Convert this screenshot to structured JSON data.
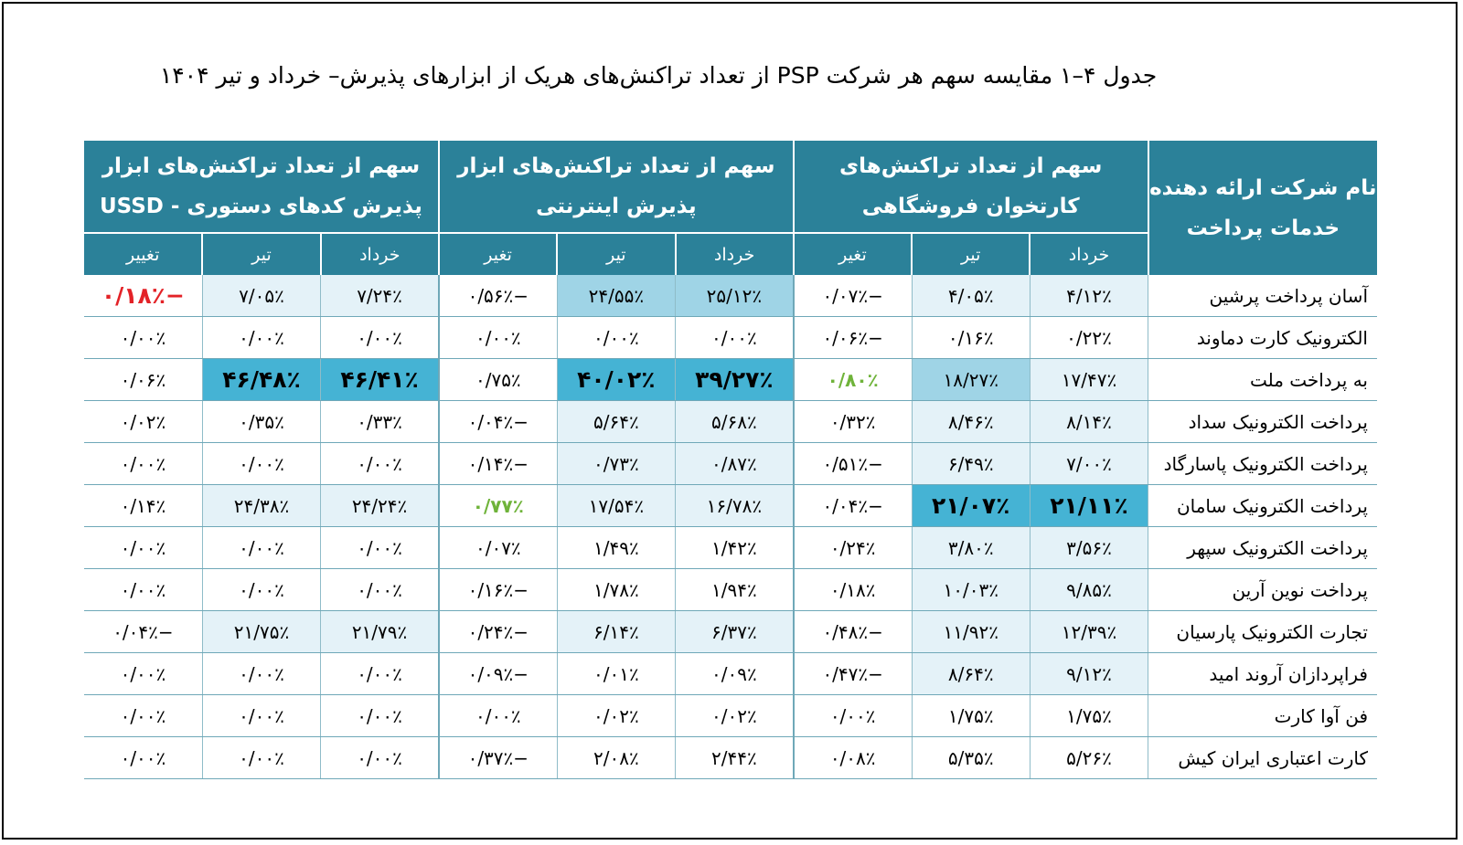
{
  "title": "جدول ۴–۱ مقایسه سهم هر شرکت PSP از تعداد تراکنش‌های هریک از ابزارهای پذیرش– خرداد و تیر ۱۴۰۴",
  "header": {
    "company": "نام شرکت ارائه دهنده خدمات پرداخت",
    "groups": [
      "سهم از تعداد تراکنش‌های کارتخوان فروشگاهی",
      "سهم از تعداد تراکنش‌های ابزار پذیرش اینترنتی",
      "سهم از تعداد تراکنش‌های ابزار پذیرش کدهای دستوری - USSD"
    ],
    "sub": [
      "خرداد",
      "تیر",
      "تغیر"
    ],
    "sub_last": "تغییر"
  },
  "rows": [
    {
      "name": "آسان پرداخت پرشین",
      "v": [
        "۴/۱۲٪",
        "۴/۰۵٪",
        "−۰/۰۷٪",
        "۲۵/۱۲٪",
        "۲۴/۵۵٪",
        "−۰/۵۶٪",
        "۷/۲۴٪",
        "۷/۰۵٪",
        "−۰/۱۸٪"
      ]
    },
    {
      "name": "الکترونیک کارت دماوند",
      "v": [
        "۰/۲۲٪",
        "۰/۱۶٪",
        "−۰/۰۶٪",
        "۰/۰۰٪",
        "۰/۰۰٪",
        "۰/۰۰٪",
        "۰/۰۰٪",
        "۰/۰۰٪",
        "۰/۰۰٪"
      ]
    },
    {
      "name": "به پرداخت ملت",
      "v": [
        "۱۷/۴۷٪",
        "۱۸/۲۷٪",
        "۰/۸۰٪",
        "۳۹/۲۷٪",
        "۴۰/۰۲٪",
        "۰/۷۵٪",
        "۴۶/۴۱٪",
        "۴۶/۴۸٪",
        "۰/۰۶٪"
      ]
    },
    {
      "name": "پرداخت الکترونیک سداد",
      "v": [
        "۸/۱۴٪",
        "۸/۴۶٪",
        "۰/۳۲٪",
        "۵/۶۸٪",
        "۵/۶۴٪",
        "−۰/۰۴٪",
        "۰/۳۳٪",
        "۰/۳۵٪",
        "۰/۰۲٪"
      ]
    },
    {
      "name": "پرداخت الکترونیک پاسارگاد",
      "v": [
        "۷/۰۰٪",
        "۶/۴۹٪",
        "−۰/۵۱٪",
        "۰/۸۷٪",
        "۰/۷۳٪",
        "−۰/۱۴٪",
        "۰/۰۰٪",
        "۰/۰۰٪",
        "۰/۰۰٪"
      ]
    },
    {
      "name": "پرداخت الکترونیک سامان",
      "v": [
        "۲۱/۱۱٪",
        "۲۱/۰۷٪",
        "−۰/۰۴٪",
        "۱۶/۷۸٪",
        "۱۷/۵۴٪",
        "۰/۷۷٪",
        "۲۴/۲۴٪",
        "۲۴/۳۸٪",
        "۰/۱۴٪"
      ]
    },
    {
      "name": "پرداخت الکترونیک سپهر",
      "v": [
        "۳/۵۶٪",
        "۳/۸۰٪",
        "۰/۲۴٪",
        "۱/۴۲٪",
        "۱/۴۹٪",
        "۰/۰۷٪",
        "۰/۰۰٪",
        "۰/۰۰٪",
        "۰/۰۰٪"
      ]
    },
    {
      "name": "پرداخت نوین آرین",
      "v": [
        "۹/۸۵٪",
        "۱۰/۰۳٪",
        "۰/۱۸٪",
        "۱/۹۴٪",
        "۱/۷۸٪",
        "−۰/۱۶٪",
        "۰/۰۰٪",
        "۰/۰۰٪",
        "۰/۰۰٪"
      ]
    },
    {
      "name": "تجارت الکترونیک پارسیان",
      "v": [
        "۱۲/۳۹٪",
        "۱۱/۹۲٪",
        "−۰/۴۸٪",
        "۶/۳۷٪",
        "۶/۱۴٪",
        "−۰/۲۴٪",
        "۲۱/۷۹٪",
        "۲۱/۷۵٪",
        "−۰/۰۴٪"
      ]
    },
    {
      "name": "فراپردازان آروند امید",
      "v": [
        "۹/۱۲٪",
        "۸/۶۴٪",
        "−۰/۴۷٪",
        "۰/۰۹٪",
        "۰/۰۱٪",
        "−۰/۰۹٪",
        "۰/۰۰٪",
        "۰/۰۰٪",
        "۰/۰۰٪"
      ]
    },
    {
      "name": "فن آوا کارت",
      "v": [
        "۱/۷۵٪",
        "۱/۷۵٪",
        "۰/۰۰٪",
        "۰/۰۲٪",
        "۰/۰۲٪",
        "۰/۰۰٪",
        "۰/۰۰٪",
        "۰/۰۰٪",
        "۰/۰۰٪"
      ]
    },
    {
      "name": "کارت اعتباری ایران کیش",
      "v": [
        "۵/۲۶٪",
        "۵/۳۵٪",
        "۰/۰۸٪",
        "۲/۴۴٪",
        "۲/۰۸٪",
        "−۰/۳۷٪",
        "۰/۰۰٪",
        "۰/۰۰٪",
        "۰/۰۰٪"
      ]
    }
  ],
  "highlight": [
    [
      "h1",
      "h1",
      "",
      "h2",
      "h2",
      "",
      "h1",
      "h1",
      "neg"
    ],
    [
      "",
      "",
      "",
      "",
      "",
      "",
      "",
      "",
      ""
    ],
    [
      "h1",
      "h2",
      "pos",
      "h3",
      "h3",
      "",
      "h3",
      "h3",
      ""
    ],
    [
      "h1",
      "h1",
      "",
      "h1",
      "h1",
      "",
      "",
      "",
      ""
    ],
    [
      "h1",
      "h1",
      "",
      "h1",
      "h1",
      "",
      "",
      "",
      ""
    ],
    [
      "h3",
      "h3",
      "",
      "h1",
      "h1",
      "pos",
      "h1",
      "h1",
      ""
    ],
    [
      "h1",
      "h1",
      "",
      "",
      "",
      "",
      "",
      "",
      ""
    ],
    [
      "h1",
      "h1",
      "",
      "",
      "",
      "",
      "",
      "",
      ""
    ],
    [
      "h1",
      "h1",
      "",
      "h1",
      "h1",
      "",
      "h1",
      "h1",
      ""
    ],
    [
      "h1",
      "h1",
      "",
      "",
      "",
      "",
      "",
      "",
      ""
    ],
    [
      "",
      "",
      "",
      "",
      "",
      "",
      "",
      "",
      ""
    ],
    [
      "",
      "",
      "",
      "",
      "",
      "",
      "",
      "",
      ""
    ]
  ]
}
